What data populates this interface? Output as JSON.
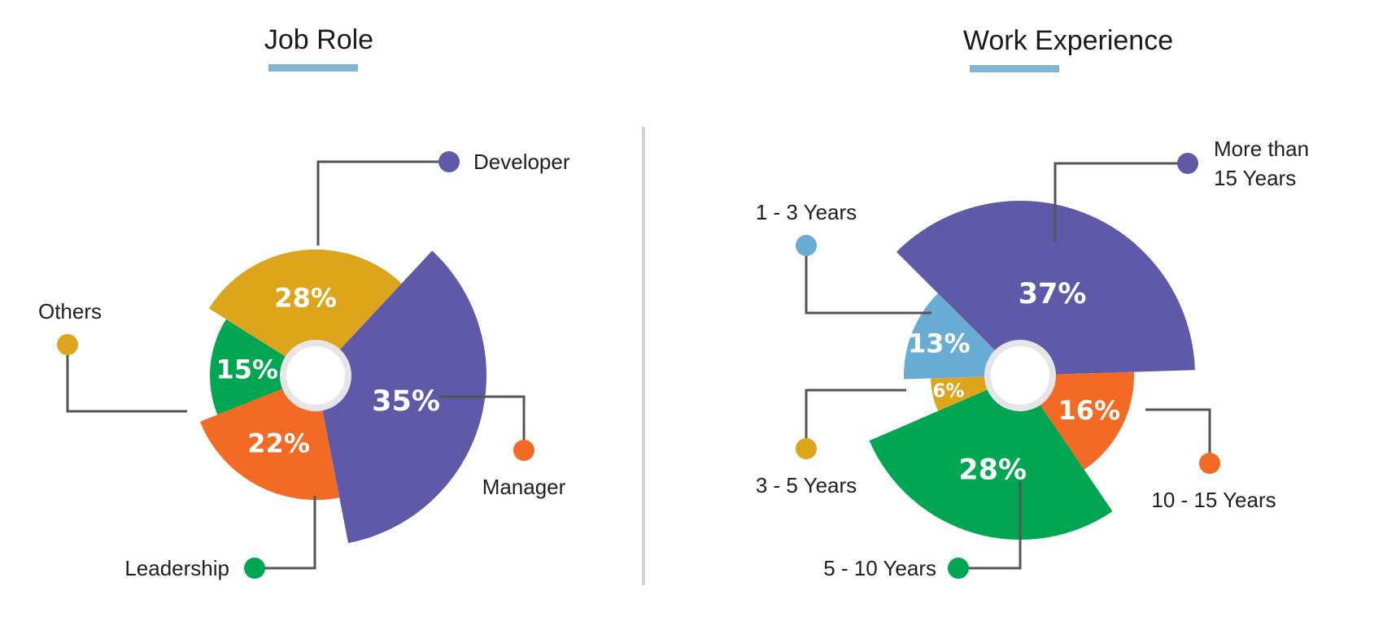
{
  "chart_data": [
    {
      "type": "pie",
      "title": "Job Role",
      "categories": [
        "Developer",
        "Manager",
        "Leadership",
        "Others"
      ],
      "values": [
        35,
        22,
        15,
        28
      ],
      "value_labels": [
        "35%",
        "22%",
        "15%",
        "28%"
      ],
      "colors": [
        "#5f5aa8",
        "#f26a24",
        "#00a651",
        "#dca51c"
      ],
      "title_underline_color": "#7fb4d6",
      "legend": "callouts"
    },
    {
      "type": "pie",
      "title": "Work Experience",
      "categories": [
        "More than 15 Years",
        "10 - 15 Years",
        "5 - 10 Years",
        "3 - 5 Years",
        "1 - 3 Years"
      ],
      "category_lines": [
        [
          "More than",
          "15 Years"
        ],
        [
          "10 - 15 Years"
        ],
        [
          "5 - 10 Years"
        ],
        [
          "3 - 5 Years"
        ],
        [
          "1 - 3 Years"
        ]
      ],
      "values": [
        37,
        16,
        28,
        6,
        13
      ],
      "value_labels": [
        "37%",
        "16%",
        "28%",
        "6%",
        "13%"
      ],
      "colors": [
        "#5f5aa8",
        "#f26a24",
        "#00a651",
        "#dca51c",
        "#6aadd4"
      ],
      "title_underline_color": "#7fb4d6",
      "legend": "callouts"
    }
  ]
}
